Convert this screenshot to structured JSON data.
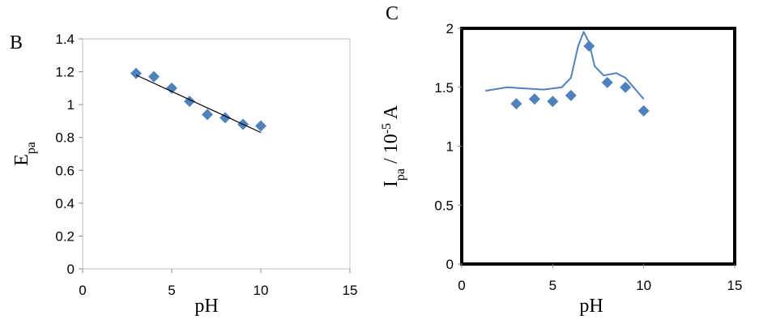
{
  "chart_data": [
    {
      "type": "scatter",
      "panel_label": "B",
      "xlabel": "pH",
      "ylabel_parts": [
        "E",
        "pa"
      ],
      "xlim": [
        0,
        15
      ],
      "xticks": [
        0,
        5,
        10,
        15
      ],
      "ylim": [
        0,
        1.4
      ],
      "yticks": [
        0,
        0.2,
        0.4,
        0.6,
        0.8,
        1,
        1.2,
        1.4
      ],
      "frame_color": "#bfbfbf",
      "series": [
        {
          "kind": "marker",
          "color": "#4f81bd",
          "x": [
            3,
            4,
            5,
            6,
            7,
            8,
            9,
            10
          ],
          "values": [
            1.19,
            1.17,
            1.1,
            1.02,
            0.94,
            0.92,
            0.88,
            0.87
          ]
        },
        {
          "kind": "line",
          "color": "#000000",
          "x": [
            3,
            10
          ],
          "values": [
            1.18,
            0.83
          ]
        }
      ]
    },
    {
      "type": "scatter",
      "panel_label": "C",
      "xlabel": "pH",
      "ylabel_parts": [
        "I",
        "pa",
        " / 10",
        "-5",
        " A"
      ],
      "xlim": [
        0,
        15
      ],
      "xticks": [
        0,
        5,
        10,
        15
      ],
      "ylim": [
        0,
        2
      ],
      "yticks": [
        0,
        0.5,
        1,
        1.5,
        2
      ],
      "frame_color": "#000000",
      "series": [
        {
          "kind": "marker",
          "color": "#4f81bd",
          "x": [
            3,
            4,
            5,
            6,
            7,
            8,
            9,
            10
          ],
          "values": [
            1.36,
            1.4,
            1.38,
            1.43,
            1.85,
            1.54,
            1.5,
            1.3
          ]
        },
        {
          "kind": "line",
          "color": "#4f81bd",
          "x": [
            1.3,
            2.5,
            3.5,
            4.5,
            5.5,
            6,
            6.4,
            6.7,
            7,
            7.3,
            7.8,
            8.5,
            9,
            10
          ],
          "values": [
            1.47,
            1.5,
            1.49,
            1.48,
            1.5,
            1.58,
            1.85,
            1.97,
            1.88,
            1.68,
            1.6,
            1.62,
            1.58,
            1.4
          ]
        }
      ]
    }
  ]
}
